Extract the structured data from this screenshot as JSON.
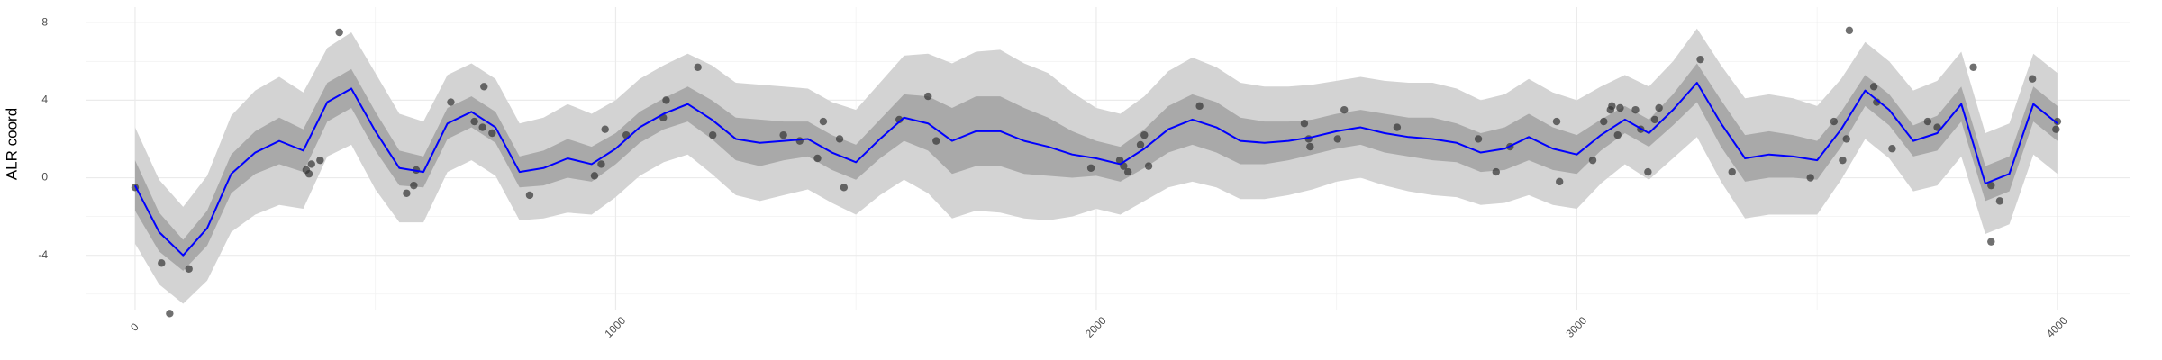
{
  "chart_data": {
    "type": "line",
    "y_label": "ALR coord",
    "xlim": [
      -103,
      4152
    ],
    "ylim": [
      -6.8,
      8.8
    ],
    "xticks": [
      0,
      1000,
      2000,
      3000,
      4000
    ],
    "yticks": [
      -4,
      0,
      4,
      8
    ],
    "grid": true,
    "x": [
      0,
      50,
      100,
      150,
      200,
      250,
      300,
      350,
      400,
      450,
      500,
      550,
      600,
      650,
      700,
      750,
      800,
      850,
      900,
      950,
      1000,
      1050,
      1100,
      1150,
      1200,
      1250,
      1300,
      1350,
      1400,
      1450,
      1500,
      1550,
      1600,
      1650,
      1700,
      1750,
      1800,
      1850,
      1900,
      1950,
      2000,
      2050,
      2100,
      2150,
      2200,
      2250,
      2300,
      2350,
      2400,
      2450,
      2500,
      2550,
      2600,
      2650,
      2700,
      2750,
      2800,
      2850,
      2900,
      2950,
      3000,
      3050,
      3100,
      3150,
      3200,
      3250,
      3300,
      3350,
      3400,
      3450,
      3500,
      3550,
      3600,
      3650,
      3700,
      3750,
      3800,
      3850,
      3900,
      3950,
      4000
    ],
    "bands": [
      {
        "color": "#d3d3d3",
        "lower": [
          -3.4,
          -5.5,
          -6.5,
          -5.3,
          -2.8,
          -1.9,
          -1.4,
          -1.6,
          1.1,
          1.7,
          -0.6,
          -2.3,
          -2.3,
          0.3,
          0.9,
          0.1,
          -2.2,
          -2.1,
          -1.8,
          -1.9,
          -1.0,
          0.1,
          0.8,
          1.2,
          0.2,
          -0.9,
          -1.2,
          -0.9,
          -0.6,
          -1.3,
          -1.9,
          -0.9,
          -0.1,
          -0.8,
          -2.1,
          -1.7,
          -1.8,
          -2.1,
          -2.2,
          -2.0,
          -1.6,
          -1.9,
          -1.2,
          -0.5,
          -0.2,
          -0.5,
          -1.1,
          -1.1,
          -0.9,
          -0.6,
          -0.2,
          0.0,
          -0.4,
          -0.7,
          -0.9,
          -1.0,
          -1.4,
          -1.3,
          -0.9,
          -1.4,
          -1.6,
          -0.3,
          0.7,
          -0.1,
          1.0,
          2.1,
          -0.2,
          -2.1,
          -1.9,
          -1.9,
          -1.9,
          -0.1,
          2.0,
          1.0,
          -0.7,
          -0.4,
          1.1,
          -2.9,
          -2.4,
          1.2,
          0.2
        ],
        "upper": [
          2.6,
          -0.1,
          -1.5,
          0.1,
          3.2,
          4.5,
          5.2,
          4.4,
          6.7,
          7.5,
          5.4,
          3.3,
          2.9,
          5.3,
          5.9,
          5.1,
          2.8,
          3.1,
          3.8,
          3.3,
          4.0,
          5.1,
          5.8,
          6.4,
          5.8,
          4.9,
          4.8,
          4.7,
          4.6,
          3.9,
          3.5,
          4.9,
          6.3,
          6.4,
          5.9,
          6.5,
          6.6,
          5.9,
          5.4,
          4.4,
          3.6,
          3.3,
          4.2,
          5.5,
          6.2,
          5.7,
          4.9,
          4.7,
          4.7,
          4.8,
          5.0,
          5.2,
          5.0,
          4.9,
          4.9,
          4.6,
          4.0,
          4.3,
          5.1,
          4.4,
          4.0,
          4.7,
          5.3,
          4.7,
          6.0,
          7.7,
          5.8,
          4.1,
          4.3,
          4.1,
          3.7,
          5.1,
          7.0,
          6.0,
          4.5,
          5.0,
          6.5,
          2.3,
          2.8,
          6.4,
          5.4
        ]
      },
      {
        "color": "#a9a9a9",
        "lower": [
          -1.7,
          -3.8,
          -4.8,
          -3.5,
          -0.8,
          0.2,
          0.7,
          0.3,
          2.9,
          3.6,
          1.4,
          -0.4,
          -0.5,
          2.0,
          2.6,
          1.8,
          -0.5,
          -0.4,
          0.0,
          -0.2,
          0.7,
          1.8,
          2.5,
          2.9,
          2.0,
          0.9,
          0.6,
          0.9,
          1.1,
          0.4,
          -0.1,
          1.0,
          1.9,
          1.4,
          0.2,
          0.6,
          0.6,
          0.2,
          0.1,
          0.0,
          0.1,
          -0.2,
          0.5,
          1.3,
          1.7,
          1.3,
          0.7,
          0.7,
          0.9,
          1.2,
          1.5,
          1.7,
          1.3,
          1.1,
          0.9,
          0.8,
          0.3,
          0.4,
          0.9,
          0.4,
          0.2,
          1.4,
          2.3,
          1.6,
          2.7,
          3.9,
          1.6,
          -0.2,
          0.0,
          0.0,
          -0.1,
          1.6,
          3.7,
          2.7,
          1.1,
          1.4,
          2.9,
          -1.2,
          -0.7,
          2.9,
          1.9
        ],
        "upper": [
          0.9,
          -1.8,
          -3.2,
          -1.7,
          1.2,
          2.4,
          3.1,
          2.5,
          4.9,
          5.6,
          3.4,
          1.4,
          1.1,
          3.6,
          4.2,
          3.4,
          1.1,
          1.4,
          2.0,
          1.6,
          2.3,
          3.4,
          4.1,
          4.7,
          4.0,
          3.1,
          3.0,
          2.9,
          2.9,
          2.2,
          1.7,
          3.0,
          4.3,
          4.2,
          3.6,
          4.2,
          4.2,
          3.6,
          3.1,
          2.4,
          1.9,
          1.6,
          2.5,
          3.7,
          4.3,
          3.9,
          3.1,
          2.9,
          2.9,
          3.0,
          3.3,
          3.5,
          3.3,
          3.1,
          3.1,
          2.8,
          2.3,
          2.6,
          3.3,
          2.6,
          2.2,
          3.0,
          3.7,
          3.0,
          4.3,
          5.9,
          4.0,
          2.2,
          2.4,
          2.2,
          1.9,
          3.4,
          5.3,
          4.3,
          2.7,
          3.2,
          4.7,
          0.6,
          1.1,
          4.7,
          3.7
        ]
      }
    ],
    "series": [
      {
        "color": "#0000ff",
        "values": [
          -0.4,
          -2.8,
          -4.0,
          -2.6,
          0.2,
          1.3,
          1.9,
          1.4,
          3.9,
          4.6,
          2.4,
          0.5,
          0.3,
          2.8,
          3.4,
          2.6,
          0.3,
          0.5,
          1.0,
          0.7,
          1.5,
          2.6,
          3.3,
          3.8,
          3.0,
          2.0,
          1.8,
          1.9,
          2.0,
          1.3,
          0.8,
          2.0,
          3.1,
          2.8,
          1.9,
          2.4,
          2.4,
          1.9,
          1.6,
          1.2,
          1.0,
          0.7,
          1.5,
          2.5,
          3.0,
          2.6,
          1.9,
          1.8,
          1.9,
          2.1,
          2.4,
          2.6,
          2.3,
          2.1,
          2.0,
          1.8,
          1.3,
          1.5,
          2.1,
          1.5,
          1.2,
          2.2,
          3.0,
          2.3,
          3.5,
          4.9,
          2.8,
          1.0,
          1.2,
          1.1,
          0.9,
          2.5,
          4.5,
          3.5,
          1.9,
          2.3,
          3.8,
          -0.3,
          0.2,
          3.8,
          2.8
        ]
      }
    ],
    "points": {
      "color": "#333333",
      "x": [
        0,
        55,
        72,
        112,
        356,
        362,
        367,
        385,
        425,
        565,
        580,
        585,
        657,
        706,
        723,
        726,
        743,
        821,
        956,
        970,
        978,
        1022,
        1099,
        1105,
        1171,
        1202,
        1349,
        1383,
        1420,
        1432,
        1466,
        1475,
        1590,
        1650,
        1667,
        1989,
        2049,
        2057,
        2066,
        2092,
        2100,
        2109,
        2215,
        2433,
        2442,
        2445,
        2502,
        2516,
        2626,
        2795,
        2832,
        2861,
        2958,
        2964,
        3033,
        3056,
        3070,
        3073,
        3085,
        3090,
        3122,
        3133,
        3148,
        3162,
        3171,
        3257,
        3323,
        3486,
        3535,
        3553,
        3561,
        3567,
        3618,
        3624,
        3656,
        3730,
        3750,
        3825,
        3862,
        3862,
        3880,
        3948,
        3997,
        4000
      ],
      "y": [
        -0.5,
        -4.4,
        -7.0,
        -4.7,
        0.4,
        0.2,
        0.7,
        0.9,
        7.5,
        -0.8,
        -0.4,
        0.4,
        3.9,
        2.9,
        2.6,
        4.7,
        2.3,
        -0.9,
        0.1,
        0.7,
        2.5,
        2.2,
        3.1,
        4.0,
        5.7,
        2.2,
        2.2,
        1.9,
        1.0,
        2.9,
        2.0,
        -0.5,
        3.0,
        4.2,
        1.9,
        0.5,
        0.9,
        0.6,
        0.3,
        1.7,
        2.2,
        0.6,
        3.7,
        2.8,
        2.0,
        1.6,
        2.0,
        3.5,
        2.6,
        2.0,
        0.3,
        1.6,
        2.9,
        -0.2,
        0.9,
        2.9,
        3.5,
        3.7,
        2.2,
        3.6,
        3.5,
        2.5,
        0.3,
        3.0,
        3.6,
        6.1,
        0.3,
        0.0,
        2.9,
        0.9,
        2.0,
        7.6,
        4.7,
        3.9,
        1.5,
        2.9,
        2.6,
        5.7,
        -0.4,
        -3.3,
        -1.2,
        5.1,
        2.5,
        2.9
      ]
    }
  }
}
